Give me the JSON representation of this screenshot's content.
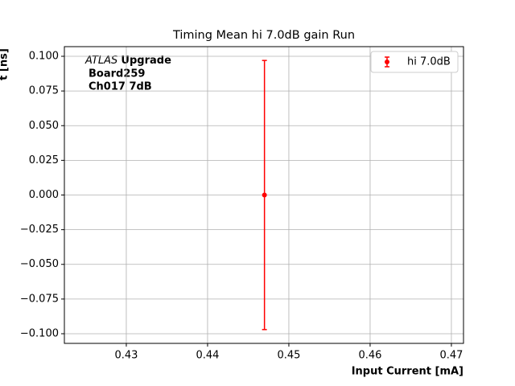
{
  "chart_data": {
    "type": "errorbar",
    "title": "Timing Mean hi 7.0dB gain Run",
    "xlabel": "Input Current [mA]",
    "ylabel": "t [ns]",
    "annotation": {
      "italic": "ATLAS",
      "bold": "Upgrade",
      "lines": [
        "Board259",
        "Ch017 7dB"
      ]
    },
    "series": [
      {
        "name": "hi 7.0dB",
        "color": "#ff0000",
        "x": [
          0.447
        ],
        "values": [
          0
        ],
        "errors": [
          0.097
        ]
      }
    ],
    "xlim": [
      0.42238,
      0.47149
    ],
    "xticks": [
      0.43,
      0.44,
      0.45,
      0.46,
      0.47
    ],
    "ylim": [
      -0.10696,
      0.10696
    ],
    "yticks": [
      {
        "value": -0.1,
        "label": "−0.100"
      },
      {
        "value": -0.075,
        "label": "−0.075"
      },
      {
        "value": -0.05,
        "label": "−0.050"
      },
      {
        "value": -0.025,
        "label": "−0.025"
      },
      {
        "value": 0,
        "label": "0.000"
      },
      {
        "value": 0.025,
        "label": "0.025"
      },
      {
        "value": 0.05,
        "label": "0.050"
      },
      {
        "value": 0.075,
        "label": "0.075"
      },
      {
        "value": 0.1,
        "label": "0.100"
      }
    ],
    "grid": true,
    "legend": "upper right"
  }
}
